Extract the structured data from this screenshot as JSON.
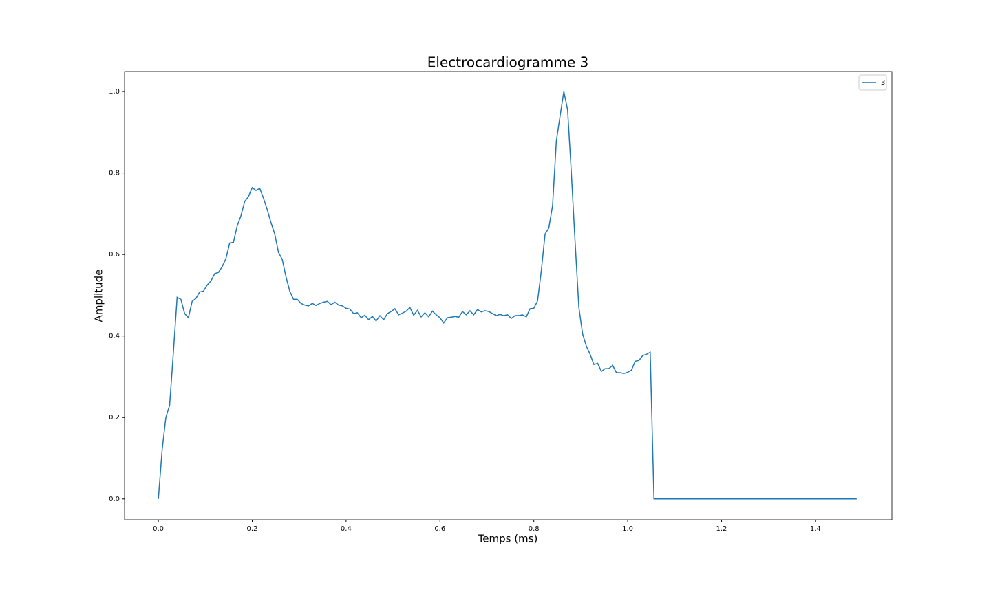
{
  "chart_data": {
    "type": "line",
    "title": "Electrocardiogramme 3",
    "x_label": "Temps (ms)",
    "y_label": "Amplitude",
    "x": [
      0,
      0.008,
      0.016,
      0.024,
      0.032,
      0.04,
      0.048,
      0.056,
      0.064,
      0.072,
      0.08,
      0.088,
      0.096,
      0.104,
      0.112,
      0.12,
      0.128,
      0.136,
      0.144,
      0.152,
      0.16,
      0.168,
      0.176,
      0.184,
      0.192,
      0.2,
      0.208,
      0.216,
      0.224,
      0.232,
      0.24,
      0.248,
      0.256,
      0.264,
      0.272,
      0.28,
      0.288,
      0.296,
      0.304,
      0.312,
      0.32,
      0.328,
      0.336,
      0.344,
      0.352,
      0.36,
      0.368,
      0.376,
      0.384,
      0.392,
      0.4,
      0.408,
      0.416,
      0.424,
      0.432,
      0.44,
      0.448,
      0.456,
      0.464,
      0.472,
      0.48,
      0.488,
      0.496,
      0.504,
      0.512,
      0.52,
      0.528,
      0.536,
      0.544,
      0.552,
      0.56,
      0.568,
      0.576,
      0.584,
      0.592,
      0.6,
      0.608,
      0.616,
      0.624,
      0.632,
      0.64,
      0.648,
      0.656,
      0.664,
      0.672,
      0.68,
      0.688,
      0.696,
      0.704,
      0.712,
      0.72,
      0.728,
      0.736,
      0.744,
      0.752,
      0.76,
      0.768,
      0.776,
      0.784,
      0.792,
      0.8,
      0.808,
      0.816,
      0.824,
      0.832,
      0.84,
      0.848,
      0.856,
      0.864,
      0.872,
      0.88,
      0.888,
      0.896,
      0.904,
      0.912,
      0.92,
      0.928,
      0.936,
      0.944,
      0.952,
      0.96,
      0.968,
      0.976,
      0.984,
      0.992,
      1.0,
      1.008,
      1.016,
      1.024,
      1.032,
      1.04,
      1.048,
      1.056,
      1.488
    ],
    "series": [
      {
        "name": "3",
        "color": "#1f77b4",
        "values": [
          0,
          0.12,
          0.2,
          0.23,
          0.36,
          0.495,
          0.49,
          0.455,
          0.445,
          0.485,
          0.492,
          0.508,
          0.51,
          0.525,
          0.535,
          0.553,
          0.556,
          0.57,
          0.59,
          0.628,
          0.63,
          0.67,
          0.695,
          0.73,
          0.742,
          0.764,
          0.757,
          0.762,
          0.738,
          0.71,
          0.678,
          0.65,
          0.605,
          0.588,
          0.545,
          0.51,
          0.49,
          0.49,
          0.48,
          0.476,
          0.474,
          0.48,
          0.475,
          0.48,
          0.483,
          0.485,
          0.477,
          0.483,
          0.476,
          0.474,
          0.468,
          0.466,
          0.455,
          0.457,
          0.445,
          0.451,
          0.44,
          0.448,
          0.437,
          0.45,
          0.44,
          0.455,
          0.46,
          0.467,
          0.452,
          0.456,
          0.461,
          0.47,
          0.451,
          0.463,
          0.447,
          0.457,
          0.447,
          0.461,
          0.452,
          0.445,
          0.432,
          0.445,
          0.446,
          0.448,
          0.446,
          0.46,
          0.452,
          0.462,
          0.452,
          0.465,
          0.459,
          0.462,
          0.46,
          0.455,
          0.45,
          0.453,
          0.45,
          0.452,
          0.443,
          0.45,
          0.45,
          0.452,
          0.447,
          0.467,
          0.468,
          0.486,
          0.56,
          0.65,
          0.665,
          0.72,
          0.878,
          0.94,
          1.0,
          0.955,
          0.8,
          0.63,
          0.47,
          0.405,
          0.375,
          0.355,
          0.33,
          0.333,
          0.313,
          0.32,
          0.32,
          0.328,
          0.31,
          0.31,
          0.308,
          0.311,
          0.316,
          0.338,
          0.34,
          0.352,
          0.355,
          0.36,
          0,
          0
        ]
      }
    ],
    "xlim": [
      -0.072,
      1.563
    ],
    "ylim": [
      -0.051,
      1.049
    ],
    "xticks": [
      {
        "value": 0,
        "label": "0.0"
      },
      {
        "value": 0.2,
        "label": "0.2"
      },
      {
        "value": 0.4,
        "label": "0.4"
      },
      {
        "value": 0.6,
        "label": "0.6"
      },
      {
        "value": 0.8,
        "label": "0.8"
      },
      {
        "value": 1.0,
        "label": "1.0"
      },
      {
        "value": 1.2,
        "label": "1.2"
      },
      {
        "value": 1.4,
        "label": "1.4"
      }
    ],
    "yticks": [
      {
        "value": 0,
        "label": "0.0"
      },
      {
        "value": 0.2,
        "label": "0.2"
      },
      {
        "value": 0.4,
        "label": "0.4"
      },
      {
        "value": 0.6,
        "label": "0.6"
      },
      {
        "value": 0.8,
        "label": "0.8"
      },
      {
        "value": 1.0,
        "label": "1.0"
      }
    ],
    "grid": false,
    "legend": "upper right"
  }
}
